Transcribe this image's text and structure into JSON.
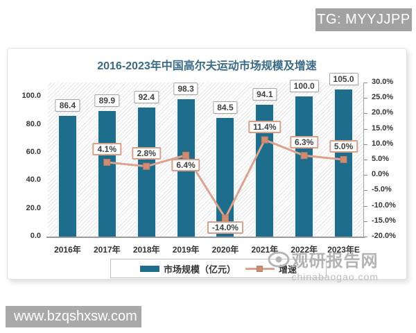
{
  "badges": {
    "tg": "TG: MYYJJPP",
    "site": "www.bzqshxsw.com"
  },
  "watermark": {
    "brand": "观研报告网",
    "domain": "chinabaogao.com"
  },
  "chart_data": {
    "type": "bar",
    "title": "2016-2023年中国高尔夫运动市场规模及增速",
    "categories": [
      "2016年",
      "2017年",
      "2018年",
      "2019年",
      "2020年",
      "2021年",
      "2022年",
      "2023年E"
    ],
    "series": [
      {
        "name": "市场规模（亿元）",
        "type": "bar",
        "axis": "left",
        "color": "#1e6d8c",
        "values": [
          86.4,
          89.9,
          92.4,
          98.3,
          84.5,
          94.1,
          100.0,
          105.0
        ],
        "data_labels": [
          "86.4",
          "89.9",
          "92.4",
          "98.3",
          "84.5",
          "94.1",
          "100.0",
          "105.0"
        ]
      },
      {
        "name": "增速",
        "type": "line",
        "axis": "right",
        "color": "#dba38d",
        "marker_color": "#ce8c72",
        "values": [
          null,
          4.1,
          2.8,
          6.4,
          -14.0,
          11.4,
          6.3,
          5.0
        ],
        "data_labels": [
          "",
          "4.1%",
          "2.8%",
          "6.4%",
          "-14.0%",
          "11.4%",
          "6.3%",
          "5.0%"
        ],
        "label_placement": [
          null,
          "above",
          "above",
          "below",
          "below",
          "above",
          "above",
          "above"
        ]
      }
    ],
    "axis_left": {
      "min": 0,
      "max": 110,
      "ticks": [
        {
          "v": 0,
          "label": "0.0"
        },
        {
          "v": 20,
          "label": "20.0"
        },
        {
          "v": 40,
          "label": "40.0"
        },
        {
          "v": 60,
          "label": "60.0"
        },
        {
          "v": 80,
          "label": "80.0"
        },
        {
          "v": 100,
          "label": "100.0"
        }
      ]
    },
    "axis_right": {
      "min": -20,
      "max": 30,
      "ticks": [
        {
          "v": 30,
          "label": "30.0%"
        },
        {
          "v": 25,
          "label": "25.0%"
        },
        {
          "v": 20,
          "label": "20.0%"
        },
        {
          "v": 15,
          "label": "15.0%"
        },
        {
          "v": 10,
          "label": "10.0%"
        },
        {
          "v": 5,
          "label": "5.0%"
        },
        {
          "v": 0,
          "label": "0.0%"
        },
        {
          "v": -5,
          "label": "-5.0%"
        },
        {
          "v": -10,
          "label": "-10.0%"
        },
        {
          "v": -15,
          "label": "-15.0%"
        },
        {
          "v": -20,
          "label": "-20.0%"
        }
      ]
    },
    "legend_position": "bottom",
    "grid": false,
    "plot_background": "diagonal-hatch"
  }
}
